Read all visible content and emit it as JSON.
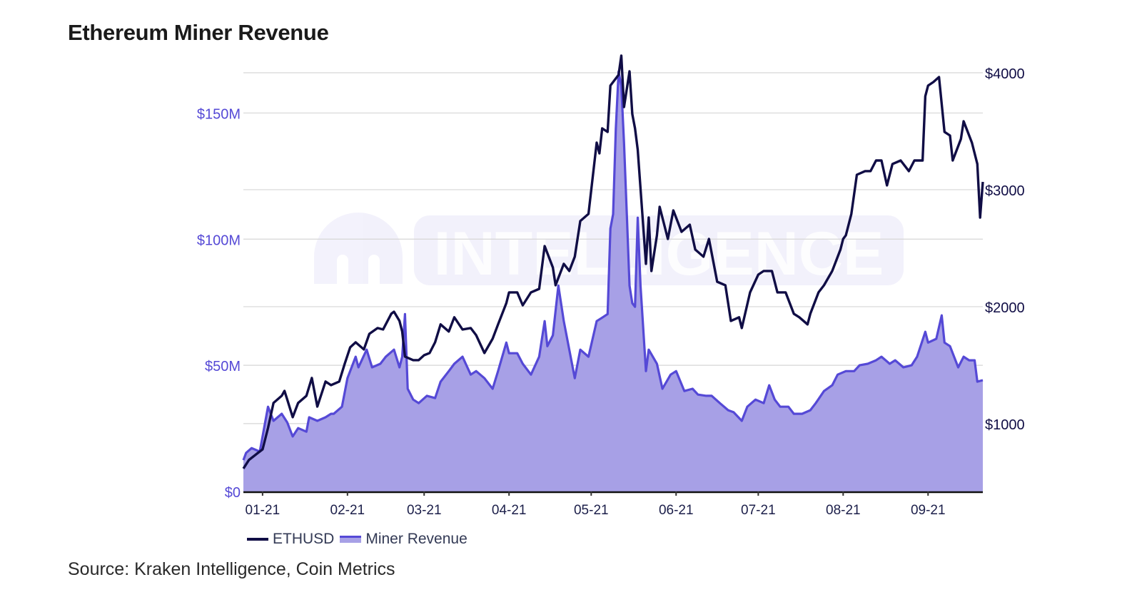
{
  "title": "Ethereum Miner Revenue",
  "source": "Source: Kraken Intelligence, Coin Metrics",
  "watermark": "INTELLIGENCE",
  "colors": {
    "ethusd": "#100d45",
    "revenue_line": "#5549d6",
    "revenue_fill": "#a7a0e6",
    "left_axis": "#5549d6",
    "right_axis": "#100d45",
    "grid": "#d6d6d6"
  },
  "chart_data": {
    "type": "line+area",
    "title": "Ethereum Miner Revenue",
    "xlim": [
      "2020-12-25",
      "2021-09-21"
    ],
    "x_ticks": [
      {
        "date": "2021-01-01",
        "label": "01-21"
      },
      {
        "date": "2021-02-01",
        "label": "02-21"
      },
      {
        "date": "2021-03-01",
        "label": "03-21"
      },
      {
        "date": "2021-04-01",
        "label": "04-21"
      },
      {
        "date": "2021-05-01",
        "label": "05-21"
      },
      {
        "date": "2021-06-01",
        "label": "06-21"
      },
      {
        "date": "2021-07-01",
        "label": "07-21"
      },
      {
        "date": "2021-08-01",
        "label": "08-21"
      },
      {
        "date": "2021-09-01",
        "label": "09-21"
      }
    ],
    "y_left": {
      "lim": [
        0,
        175
      ],
      "ticks": [
        0,
        50,
        100,
        150
      ],
      "tick_labels": [
        "$0",
        "$50M",
        "$100M",
        "$150M"
      ],
      "unit": "USD millions"
    },
    "y_right": {
      "lim": [
        420,
        4195
      ],
      "ticks": [
        1000,
        2000,
        3000,
        4000
      ],
      "tick_labels": [
        "$1000",
        "$2000",
        "$3000",
        "$4000"
      ]
    },
    "grid": true,
    "legend": {
      "placement": "bottom-left",
      "entries": [
        "ETHUSD",
        "Miner Revenue"
      ]
    },
    "series": [
      {
        "name": "ETHUSD",
        "axis": "right",
        "type": "line",
        "points": [
          [
            "2020-12-25",
            616
          ],
          [
            "2020-12-27",
            689
          ],
          [
            "2020-12-30",
            744
          ],
          [
            "2021-01-01",
            780
          ],
          [
            "2021-01-03",
            963
          ],
          [
            "2021-01-05",
            1177
          ],
          [
            "2021-01-08",
            1238
          ],
          [
            "2021-01-09",
            1280
          ],
          [
            "2021-01-10",
            1207
          ],
          [
            "2021-01-12",
            1055
          ],
          [
            "2021-01-14",
            1177
          ],
          [
            "2021-01-17",
            1238
          ],
          [
            "2021-01-19",
            1390
          ],
          [
            "2021-01-21",
            1146
          ],
          [
            "2021-01-24",
            1360
          ],
          [
            "2021-01-26",
            1329
          ],
          [
            "2021-01-29",
            1360
          ],
          [
            "2021-01-31",
            1512
          ],
          [
            "2021-02-02",
            1652
          ],
          [
            "2021-02-04",
            1695
          ],
          [
            "2021-02-07",
            1634
          ],
          [
            "2021-02-09",
            1768
          ],
          [
            "2021-02-12",
            1817
          ],
          [
            "2021-02-14",
            1805
          ],
          [
            "2021-02-17",
            1939
          ],
          [
            "2021-02-18",
            1957
          ],
          [
            "2021-02-20",
            1878
          ],
          [
            "2021-02-21",
            1787
          ],
          [
            "2021-02-22",
            1573
          ],
          [
            "2021-02-25",
            1543
          ],
          [
            "2021-02-27",
            1543
          ],
          [
            "2021-03-01",
            1585
          ],
          [
            "2021-03-03",
            1604
          ],
          [
            "2021-03-05",
            1695
          ],
          [
            "2021-03-07",
            1848
          ],
          [
            "2021-03-10",
            1787
          ],
          [
            "2021-03-12",
            1909
          ],
          [
            "2021-03-15",
            1805
          ],
          [
            "2021-03-18",
            1817
          ],
          [
            "2021-03-20",
            1756
          ],
          [
            "2021-03-23",
            1604
          ],
          [
            "2021-03-26",
            1726
          ],
          [
            "2021-03-28",
            1848
          ],
          [
            "2021-03-31",
            2030
          ],
          [
            "2021-04-01",
            2122
          ],
          [
            "2021-04-04",
            2122
          ],
          [
            "2021-04-06",
            2012
          ],
          [
            "2021-04-09",
            2122
          ],
          [
            "2021-04-12",
            2152
          ],
          [
            "2021-04-14",
            2518
          ],
          [
            "2021-04-17",
            2335
          ],
          [
            "2021-04-18",
            2183
          ],
          [
            "2021-04-21",
            2366
          ],
          [
            "2021-04-23",
            2305
          ],
          [
            "2021-04-25",
            2427
          ],
          [
            "2021-04-27",
            2732
          ],
          [
            "2021-04-30",
            2793
          ],
          [
            "2021-05-03",
            3402
          ],
          [
            "2021-05-04",
            3311
          ],
          [
            "2021-05-05",
            3524
          ],
          [
            "2021-05-07",
            3494
          ],
          [
            "2021-05-08",
            3890
          ],
          [
            "2021-05-11",
            3982
          ],
          [
            "2021-05-12",
            4146
          ],
          [
            "2021-05-13",
            3707
          ],
          [
            "2021-05-15",
            4012
          ],
          [
            "2021-05-16",
            3646
          ],
          [
            "2021-05-17",
            3524
          ],
          [
            "2021-05-18",
            3341
          ],
          [
            "2021-05-21",
            2366
          ],
          [
            "2021-05-22",
            2762
          ],
          [
            "2021-05-23",
            2305
          ],
          [
            "2021-05-25",
            2610
          ],
          [
            "2021-05-26",
            2854
          ],
          [
            "2021-05-29",
            2579
          ],
          [
            "2021-05-31",
            2823
          ],
          [
            "2021-06-03",
            2640
          ],
          [
            "2021-06-06",
            2701
          ],
          [
            "2021-06-08",
            2488
          ],
          [
            "2021-06-11",
            2427
          ],
          [
            "2021-06-13",
            2579
          ],
          [
            "2021-06-16",
            2213
          ],
          [
            "2021-06-19",
            2183
          ],
          [
            "2021-06-21",
            1878
          ],
          [
            "2021-06-24",
            1909
          ],
          [
            "2021-06-25",
            1817
          ],
          [
            "2021-06-28",
            2122
          ],
          [
            "2021-07-01",
            2274
          ],
          [
            "2021-07-03",
            2305
          ],
          [
            "2021-07-06",
            2305
          ],
          [
            "2021-07-08",
            2122
          ],
          [
            "2021-07-11",
            2122
          ],
          [
            "2021-07-14",
            1939
          ],
          [
            "2021-07-16",
            1909
          ],
          [
            "2021-07-19",
            1848
          ],
          [
            "2021-07-20",
            1939
          ],
          [
            "2021-07-23",
            2122
          ],
          [
            "2021-07-25",
            2183
          ],
          [
            "2021-07-28",
            2305
          ],
          [
            "2021-07-31",
            2488
          ],
          [
            "2021-08-01",
            2579
          ],
          [
            "2021-08-02",
            2610
          ],
          [
            "2021-08-04",
            2793
          ],
          [
            "2021-08-06",
            3128
          ],
          [
            "2021-08-09",
            3159
          ],
          [
            "2021-08-11",
            3159
          ],
          [
            "2021-08-13",
            3250
          ],
          [
            "2021-08-15",
            3250
          ],
          [
            "2021-08-17",
            3037
          ],
          [
            "2021-08-19",
            3220
          ],
          [
            "2021-08-22",
            3250
          ],
          [
            "2021-08-25",
            3159
          ],
          [
            "2021-08-27",
            3250
          ],
          [
            "2021-08-30",
            3250
          ],
          [
            "2021-08-31",
            3799
          ],
          [
            "2021-09-01",
            3890
          ],
          [
            "2021-09-03",
            3921
          ],
          [
            "2021-09-05",
            3963
          ],
          [
            "2021-09-07",
            3494
          ],
          [
            "2021-09-09",
            3463
          ],
          [
            "2021-09-10",
            3250
          ],
          [
            "2021-09-13",
            3433
          ],
          [
            "2021-09-14",
            3585
          ],
          [
            "2021-09-17",
            3402
          ],
          [
            "2021-09-19",
            3220
          ],
          [
            "2021-09-20",
            2762
          ],
          [
            "2021-09-21",
            3067
          ]
        ]
      },
      {
        "name": "Miner Revenue",
        "axis": "left",
        "type": "area",
        "points": [
          [
            "2020-12-25",
            12.4
          ],
          [
            "2020-12-26",
            15.3
          ],
          [
            "2020-12-28",
            17.2
          ],
          [
            "2020-12-31",
            15.8
          ],
          [
            "2021-01-03",
            33.6
          ],
          [
            "2021-01-05",
            28.0
          ],
          [
            "2021-01-08",
            30.8
          ],
          [
            "2021-01-10",
            27.4
          ],
          [
            "2021-01-12",
            21.8
          ],
          [
            "2021-01-14",
            25.1
          ],
          [
            "2021-01-17",
            23.7
          ],
          [
            "2021-01-18",
            29.4
          ],
          [
            "2021-01-21",
            28.0
          ],
          [
            "2021-01-24",
            29.4
          ],
          [
            "2021-01-26",
            30.8
          ],
          [
            "2021-01-27",
            30.8
          ],
          [
            "2021-01-30",
            33.6
          ],
          [
            "2021-02-01",
            44.9
          ],
          [
            "2021-02-04",
            53.4
          ],
          [
            "2021-02-05",
            49.2
          ],
          [
            "2021-02-08",
            56.2
          ],
          [
            "2021-02-10",
            49.2
          ],
          [
            "2021-02-13",
            50.6
          ],
          [
            "2021-02-15",
            53.4
          ],
          [
            "2021-02-18",
            56.2
          ],
          [
            "2021-02-20",
            49.2
          ],
          [
            "2021-02-21",
            53.4
          ],
          [
            "2021-02-22",
            70.3
          ],
          [
            "2021-02-23",
            40.7
          ],
          [
            "2021-02-25",
            36.4
          ],
          [
            "2021-02-27",
            35.0
          ],
          [
            "2021-03-02",
            37.9
          ],
          [
            "2021-03-05",
            37.0
          ],
          [
            "2021-03-07",
            43.5
          ],
          [
            "2021-03-10",
            47.7
          ],
          [
            "2021-03-12",
            50.6
          ],
          [
            "2021-03-15",
            53.4
          ],
          [
            "2021-03-18",
            46.3
          ],
          [
            "2021-03-20",
            47.7
          ],
          [
            "2021-03-23",
            44.9
          ],
          [
            "2021-03-26",
            40.7
          ],
          [
            "2021-03-28",
            47.7
          ],
          [
            "2021-03-31",
            59.0
          ],
          [
            "2021-04-01",
            54.8
          ],
          [
            "2021-04-04",
            54.8
          ],
          [
            "2021-04-06",
            50.6
          ],
          [
            "2021-04-09",
            46.3
          ],
          [
            "2021-04-12",
            53.4
          ],
          [
            "2021-04-14",
            67.5
          ],
          [
            "2021-04-15",
            57.6
          ],
          [
            "2021-04-17",
            61.9
          ],
          [
            "2021-04-19",
            81.6
          ],
          [
            "2021-04-21",
            67.5
          ],
          [
            "2021-04-23",
            56.2
          ],
          [
            "2021-04-25",
            44.9
          ],
          [
            "2021-04-27",
            56.2
          ],
          [
            "2021-04-30",
            53.4
          ],
          [
            "2021-05-03",
            67.5
          ],
          [
            "2021-05-05",
            68.9
          ],
          [
            "2021-05-07",
            70.3
          ],
          [
            "2021-05-08",
            104.2
          ],
          [
            "2021-05-09",
            109.9
          ],
          [
            "2021-05-10",
            143.8
          ],
          [
            "2021-05-11",
            166.4
          ],
          [
            "2021-05-12",
            160.7
          ],
          [
            "2021-05-13",
            138.1
          ],
          [
            "2021-05-14",
            109.9
          ],
          [
            "2021-05-15",
            81.6
          ],
          [
            "2021-05-16",
            74.6
          ],
          [
            "2021-05-17",
            73.2
          ],
          [
            "2021-05-18",
            108.5
          ],
          [
            "2021-05-19",
            81.6
          ],
          [
            "2021-05-21",
            47.7
          ],
          [
            "2021-05-22",
            56.2
          ],
          [
            "2021-05-25",
            50.6
          ],
          [
            "2021-05-27",
            40.7
          ],
          [
            "2021-05-30",
            46.3
          ],
          [
            "2021-06-01",
            47.7
          ],
          [
            "2021-06-04",
            39.8
          ],
          [
            "2021-06-07",
            40.7
          ],
          [
            "2021-06-09",
            38.4
          ],
          [
            "2021-06-12",
            37.9
          ],
          [
            "2021-06-14",
            37.9
          ],
          [
            "2021-06-17",
            35.0
          ],
          [
            "2021-06-20",
            32.2
          ],
          [
            "2021-06-22",
            31.4
          ],
          [
            "2021-06-25",
            28.0
          ],
          [
            "2021-06-27",
            33.6
          ],
          [
            "2021-06-30",
            36.4
          ],
          [
            "2021-07-03",
            35.0
          ],
          [
            "2021-07-05",
            42.1
          ],
          [
            "2021-07-07",
            36.4
          ],
          [
            "2021-07-09",
            33.6
          ],
          [
            "2021-07-12",
            33.6
          ],
          [
            "2021-07-14",
            30.8
          ],
          [
            "2021-07-17",
            30.8
          ],
          [
            "2021-07-20",
            32.2
          ],
          [
            "2021-07-22",
            35.0
          ],
          [
            "2021-07-25",
            39.8
          ],
          [
            "2021-07-28",
            42.1
          ],
          [
            "2021-07-30",
            46.3
          ],
          [
            "2021-08-02",
            47.7
          ],
          [
            "2021-08-05",
            47.7
          ],
          [
            "2021-08-07",
            50.0
          ],
          [
            "2021-08-10",
            50.6
          ],
          [
            "2021-08-13",
            52.0
          ],
          [
            "2021-08-15",
            53.4
          ],
          [
            "2021-08-18",
            50.6
          ],
          [
            "2021-08-20",
            52.0
          ],
          [
            "2021-08-23",
            49.2
          ],
          [
            "2021-08-26",
            50.0
          ],
          [
            "2021-08-28",
            53.4
          ],
          [
            "2021-08-31",
            63.3
          ],
          [
            "2021-09-01",
            59.0
          ],
          [
            "2021-09-04",
            60.5
          ],
          [
            "2021-09-06",
            69.8
          ],
          [
            "2021-09-07",
            59.0
          ],
          [
            "2021-09-09",
            57.6
          ],
          [
            "2021-09-12",
            49.2
          ],
          [
            "2021-09-14",
            53.4
          ],
          [
            "2021-09-16",
            52.0
          ],
          [
            "2021-09-18",
            52.0
          ],
          [
            "2021-09-19",
            43.5
          ],
          [
            "2021-09-21",
            44.1
          ]
        ]
      }
    ]
  }
}
